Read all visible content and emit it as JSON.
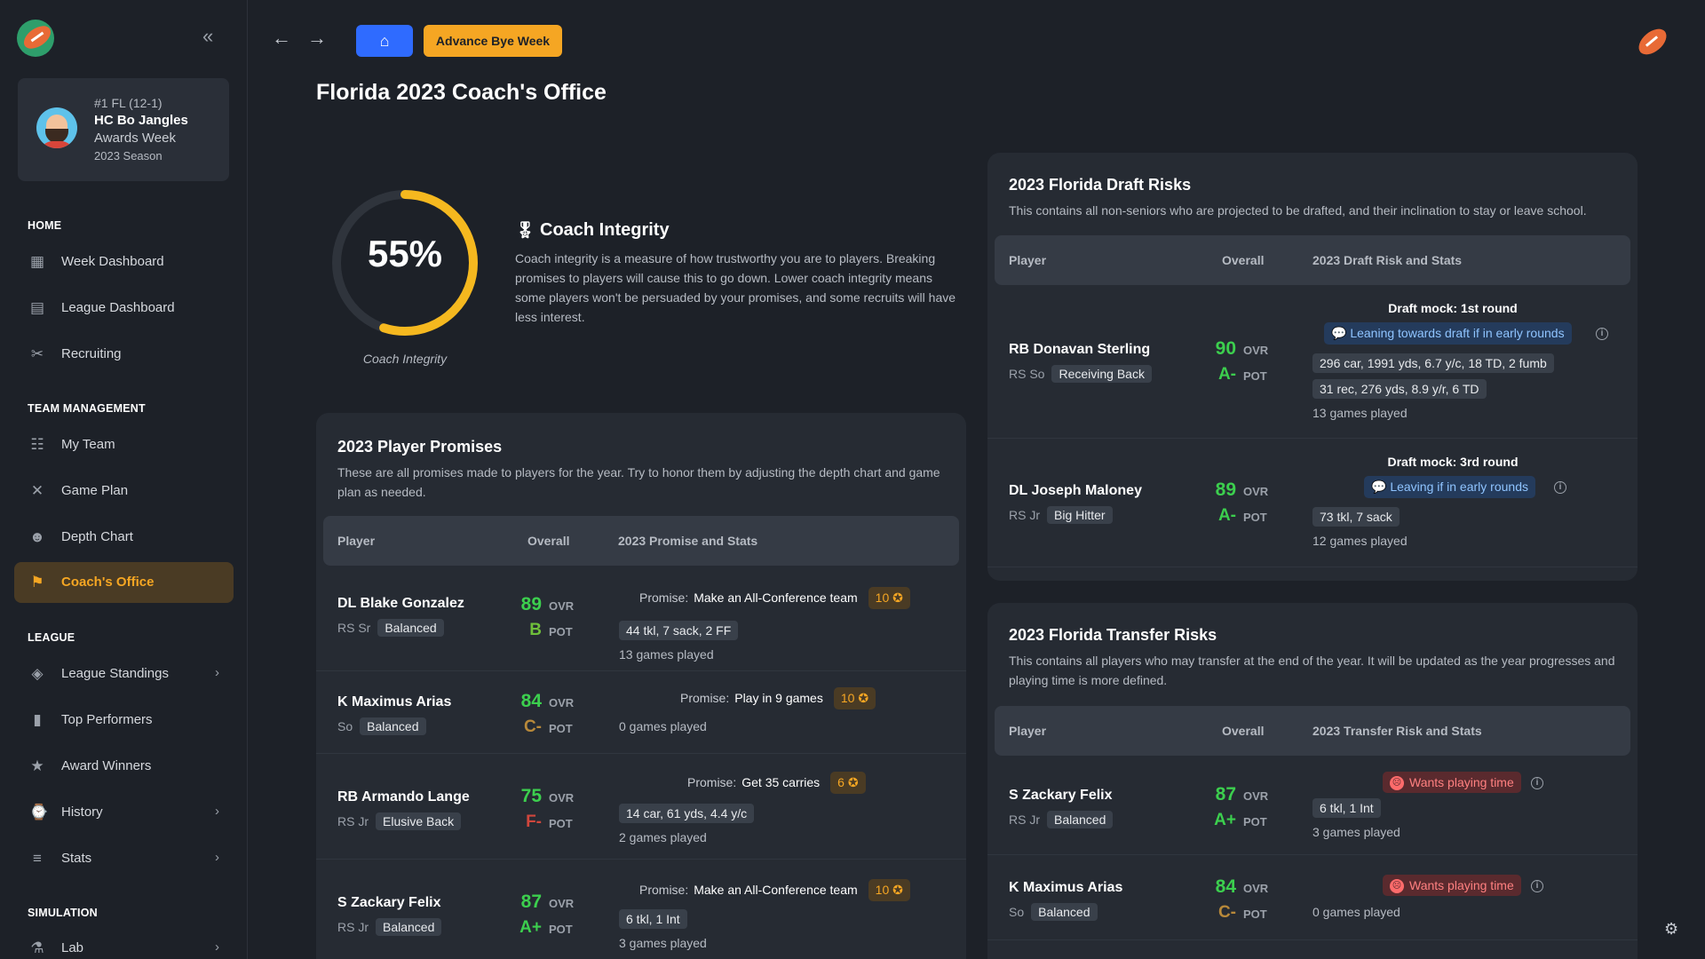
{
  "header": {
    "title": "Florida 2023 Coach's Office",
    "advance_label": "Advance Bye Week"
  },
  "coach": {
    "rank": "#1 FL (12-1)",
    "name": "HC Bo Jangles",
    "week": "Awards Week",
    "season": "2023 Season"
  },
  "sidebar": {
    "sections": {
      "home": "HOME",
      "team": "TEAM MANAGEMENT",
      "league": "LEAGUE",
      "simulation": "SIMULATION"
    },
    "items": [
      {
        "label": "Week Dashboard",
        "icon": "dashboard-icon"
      },
      {
        "label": "League Dashboard",
        "icon": "table-icon"
      },
      {
        "label": "Recruiting",
        "icon": "recruiting-icon"
      },
      {
        "label": "My Team",
        "icon": "team-icon"
      },
      {
        "label": "Game Plan",
        "icon": "game-plan-icon"
      },
      {
        "label": "Depth Chart",
        "icon": "depth-chart-icon"
      },
      {
        "label": "Coach's Office",
        "icon": "coach-office-icon"
      },
      {
        "label": "League Standings",
        "icon": "layers-icon"
      },
      {
        "label": "Top Performers",
        "icon": "bar-chart-icon"
      },
      {
        "label": "Award Winners",
        "icon": "award-icon"
      },
      {
        "label": "History",
        "icon": "history-icon"
      },
      {
        "label": "Stats",
        "icon": "database-icon"
      },
      {
        "label": "Lab",
        "icon": "flask-icon"
      }
    ]
  },
  "integrity": {
    "percent_text": "55%",
    "value": 0.55,
    "caption": "Coach Integrity",
    "title": "Coach Integrity",
    "description": "Coach integrity is a measure of how trustworthy you are to players. Breaking promises to players will cause this to go down. Lower coach integrity means some players won't be persuaded by your promises, and some recruits will have less interest."
  },
  "promises": {
    "title": "2023 Player Promises",
    "description": "These are all promises made to players for the year. Try to honor them by adjusting the depth chart and game plan as needed.",
    "columns": [
      "Player",
      "Overall",
      "2023 Promise and Stats"
    ],
    "promise_label": "Promise:",
    "rows": [
      {
        "name": "DL Blake Gonzalez",
        "year": "RS Sr",
        "archetype": "Balanced",
        "ovr": "89",
        "pot": "B",
        "promise": "Make an All-Conference team",
        "badge": "10",
        "stats": [
          "44 tkl, 7 sack, 2 FF"
        ],
        "games": "13 games played"
      },
      {
        "name": "K Maximus Arias",
        "year": "So",
        "archetype": "Balanced",
        "ovr": "84",
        "pot": "C-",
        "promise": "Play in 9 games",
        "badge": "10",
        "stats": [],
        "games": "0 games played"
      },
      {
        "name": "RB Armando Lange",
        "year": "RS Jr",
        "archetype": "Elusive Back",
        "ovr": "75",
        "pot": "F-",
        "promise": "Get 35 carries",
        "badge": "6",
        "stats": [
          "14 car, 61 yds, 4.4 y/c"
        ],
        "games": "2 games played"
      },
      {
        "name": "S Zackary Felix",
        "year": "RS Jr",
        "archetype": "Balanced",
        "ovr": "87",
        "pot": "A+",
        "promise": "Make an All-Conference team",
        "badge": "10",
        "stats": [
          "6 tkl, 1 Int"
        ],
        "games": "3 games played"
      }
    ]
  },
  "draft": {
    "title": "2023 Florida Draft Risks",
    "description": "This contains all non-seniors who are projected to be drafted, and their inclination to stay or leave school.",
    "columns": [
      "Player",
      "Overall",
      "2023 Draft Risk and Stats"
    ],
    "rows": [
      {
        "name": "RB Donavan Sterling",
        "year": "RS So",
        "archetype": "Receiving Back",
        "ovr": "90",
        "pot": "A-",
        "mock": "Draft mock: 1st round",
        "lean": "Leaning towards draft if in early rounds",
        "stats": [
          "296 car, 1991 yds, 6.7 y/c, 18 TD, 2 fumb",
          "31 rec, 276 yds, 8.9 y/r, 6 TD"
        ],
        "games": "13 games played"
      },
      {
        "name": "DL Joseph Maloney",
        "year": "RS Jr",
        "archetype": "Big Hitter",
        "ovr": "89",
        "pot": "A-",
        "mock": "Draft mock: 3rd round",
        "lean": "Leaving if in early rounds",
        "stats": [
          "73 tkl, 7 sack"
        ],
        "games": "12 games played"
      }
    ]
  },
  "transfer": {
    "title": "2023 Florida Transfer Risks",
    "description": "This contains all players who may transfer at the end of the year. It will be updated as the year progresses and playing time is more defined.",
    "columns": [
      "Player",
      "Overall",
      "2023 Transfer Risk and Stats"
    ],
    "rows": [
      {
        "name": "S Zackary Felix",
        "year": "RS Jr",
        "archetype": "Balanced",
        "ovr": "87",
        "pot": "A+",
        "risk": "Wants playing time",
        "stats": [
          "6 tkl, 1 Int"
        ],
        "games": "3 games played"
      },
      {
        "name": "K Maximus Arias",
        "year": "So",
        "archetype": "Balanced",
        "ovr": "84",
        "pot": "C-",
        "risk": "Wants playing time",
        "stats": [],
        "games": "0 games played"
      }
    ]
  },
  "labels": {
    "ovr": "OVR",
    "pot": "POT"
  },
  "colors": {
    "accent": "#f5a623",
    "primary": "#2f6bff",
    "ovr_green": "#3ccf4e",
    "pot_a": "#3ccf4e",
    "pot_b": "#6fbf3a",
    "pot_c": "#b8893a",
    "pot_f": "#d0463c"
  }
}
